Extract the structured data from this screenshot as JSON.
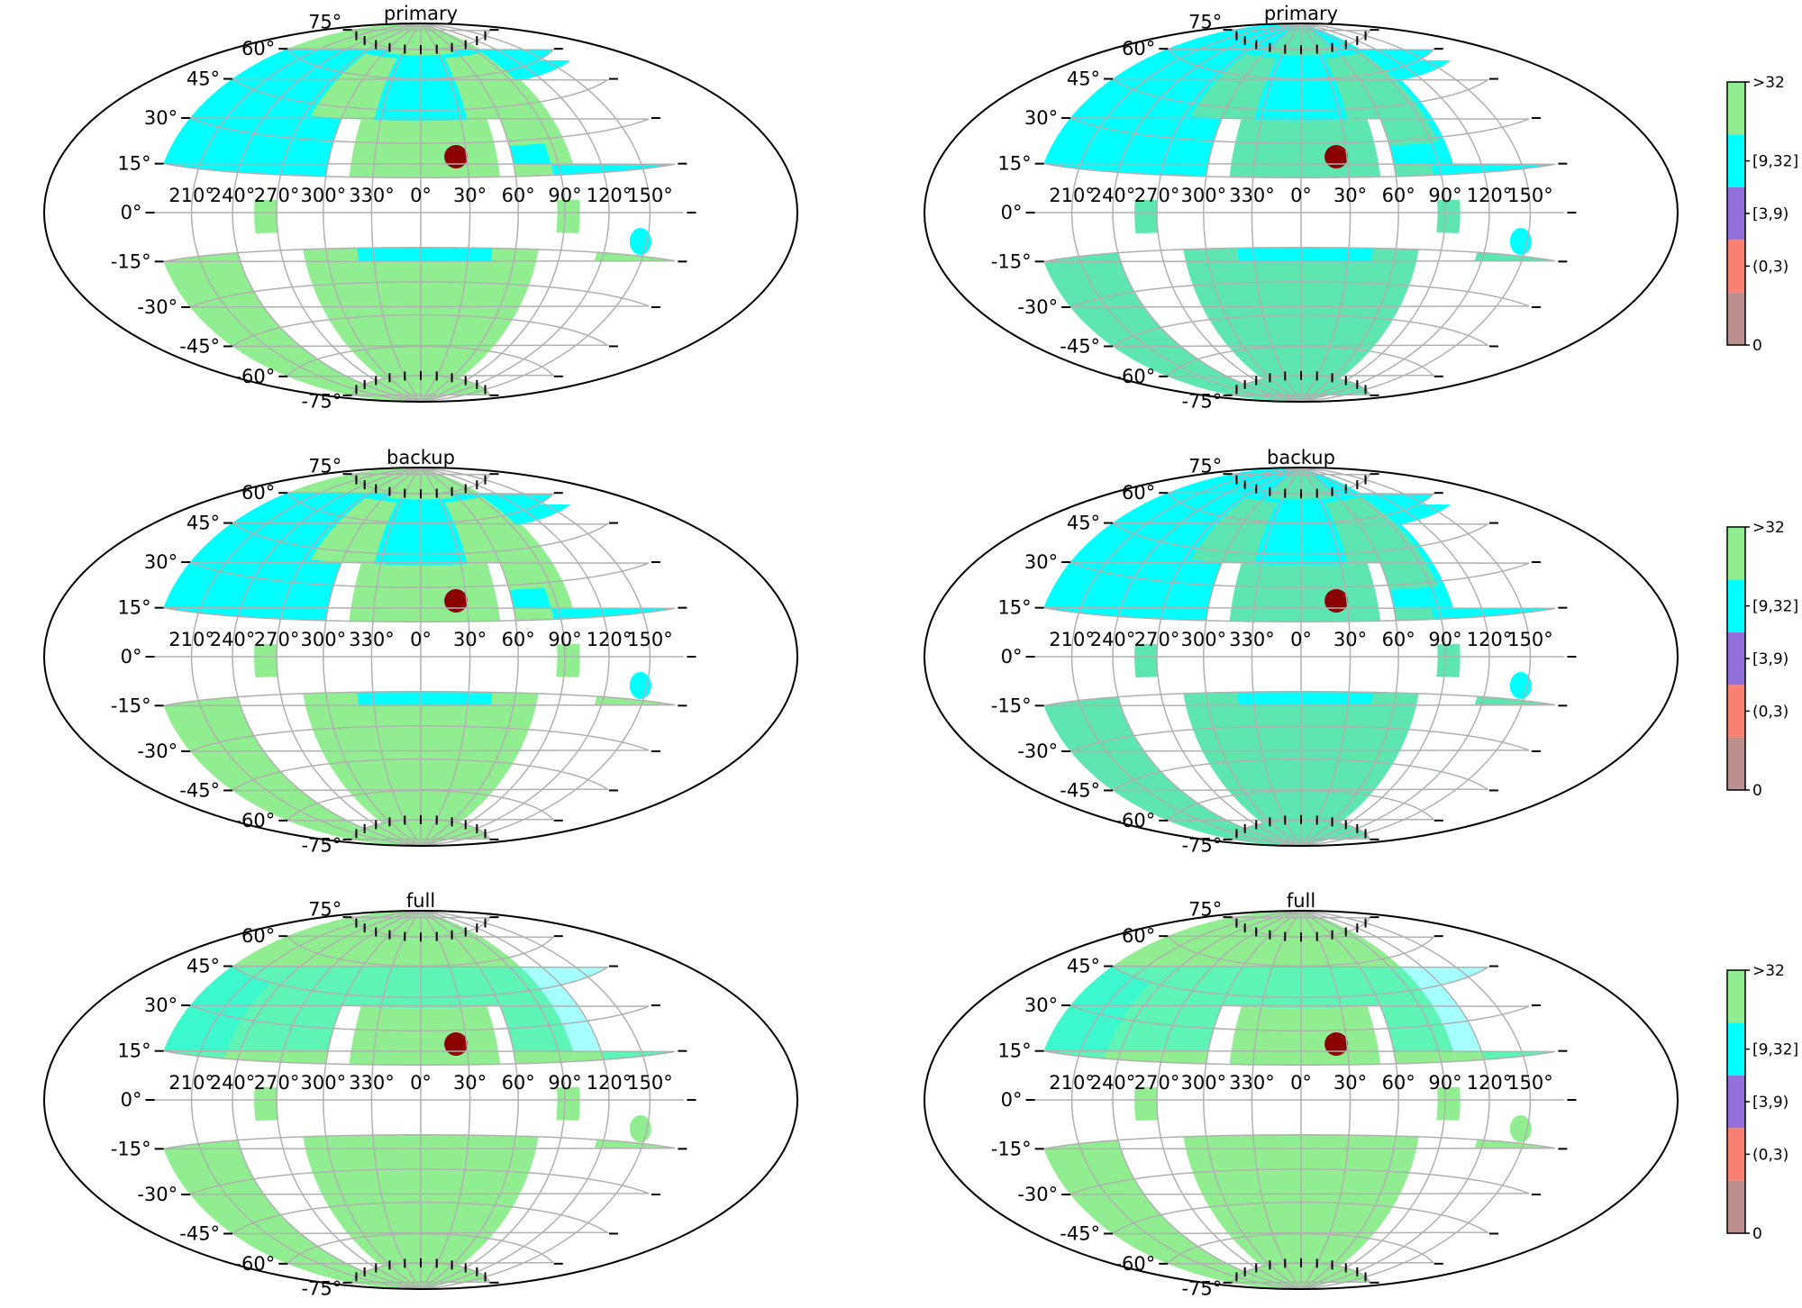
{
  "colors": {
    "lightgreen": "#90ee90",
    "cyan": "#00ffff",
    "mediumpurple": "#9370db",
    "salmon": "#fa8072",
    "rosybrown": "#bc8f8f",
    "darkred": "#8b0000",
    "grid": "#b0b0b0"
  },
  "chart_data": {
    "type": "heatmap",
    "projection": "hammer",
    "grid": true,
    "lon_tick_labels": [
      "210°",
      "240°",
      "270°",
      "300°",
      "330°",
      "0°",
      "30°",
      "60°",
      "90°",
      "120°",
      "150°"
    ],
    "lat_tick_labels": [
      "-75°",
      "-60°",
      "-45°",
      "-30°",
      "-15°",
      "0°",
      "15°",
      "30°",
      "45°",
      "60°",
      "75°"
    ],
    "lon_tick_values": [
      210,
      240,
      270,
      300,
      330,
      0,
      30,
      60,
      90,
      120,
      150
    ],
    "lat_tick_values": [
      -75,
      -60,
      -45,
      -30,
      -15,
      0,
      15,
      30,
      45,
      60,
      75
    ],
    "panels": [
      {
        "title": "primary",
        "column": "left",
        "band": "cyan",
        "south": "cyan",
        "outer": "lightgreen",
        "blob": "cyan"
      },
      {
        "title": "primary",
        "column": "right",
        "band": "cyan",
        "south": "cyan",
        "outer": "mediumseagreen",
        "blob": "cyan"
      },
      {
        "title": "backup",
        "column": "left",
        "band": "cyan",
        "south": "cyan",
        "outer": "lightgreen",
        "blob": "cyan"
      },
      {
        "title": "backup",
        "column": "right",
        "band": "cyan",
        "south": "cyan",
        "outer": "mediumseagreen",
        "blob": "cyan"
      },
      {
        "title": "full",
        "column": "left",
        "band": "lightgreen",
        "south": "lightgreen",
        "outer": "lightgreen",
        "blob": "lightgreen"
      },
      {
        "title": "full",
        "column": "right",
        "band": "lightgreen",
        "south": "lightgreen",
        "outer": "lightgreen",
        "blob": "lightgreen"
      }
    ],
    "colorbar": {
      "categories": [
        "0",
        "(0,3)",
        "[3,9)",
        "[9,32]",
        ">32"
      ],
      "colors": [
        "#bc8f8f",
        "#fa8072",
        "#9370db",
        "#00ffff",
        "#90ee90"
      ],
      "tick_labels": [
        "0",
        "(0,3)",
        "[3,9)",
        "[9,32]",
        ">32"
      ]
    }
  }
}
